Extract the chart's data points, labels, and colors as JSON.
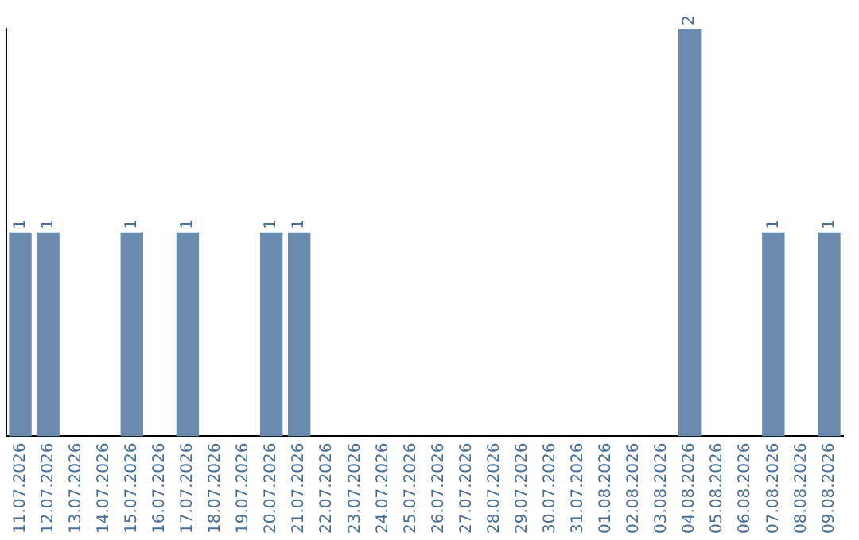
{
  "chart_data": {
    "type": "bar",
    "categories": [
      "11.07.2026",
      "12.07.2026",
      "13.07.2026",
      "14.07.2026",
      "15.07.2026",
      "16.07.2026",
      "17.07.2026",
      "18.07.2026",
      "19.07.2026",
      "20.07.2026",
      "21.07.2026",
      "22.07.2026",
      "23.07.2026",
      "24.07.2026",
      "25.07.2026",
      "26.07.2026",
      "27.07.2026",
      "28.07.2026",
      "29.07.2026",
      "30.07.2026",
      "31.07.2026",
      "01.08.2026",
      "02.08.2026",
      "03.08.2026",
      "04.08.2026",
      "05.08.2026",
      "06.08.2026",
      "07.08.2026",
      "08.08.2026",
      "09.08.2026"
    ],
    "values": [
      1,
      1,
      0,
      0,
      1,
      0,
      1,
      0,
      0,
      1,
      1,
      0,
      0,
      0,
      0,
      0,
      0,
      0,
      0,
      0,
      0,
      0,
      0,
      0,
      2,
      0,
      0,
      1,
      0,
      1
    ],
    "value_labels": [
      "1",
      "1",
      null,
      null,
      "1",
      null,
      "1",
      null,
      null,
      "1",
      "1",
      null,
      null,
      null,
      null,
      null,
      null,
      null,
      null,
      null,
      null,
      null,
      null,
      null,
      "2",
      null,
      null,
      "1",
      null,
      "1"
    ],
    "color": "#6b8cae",
    "grid": false,
    "legend": false,
    "tick_labels": "x"
  }
}
